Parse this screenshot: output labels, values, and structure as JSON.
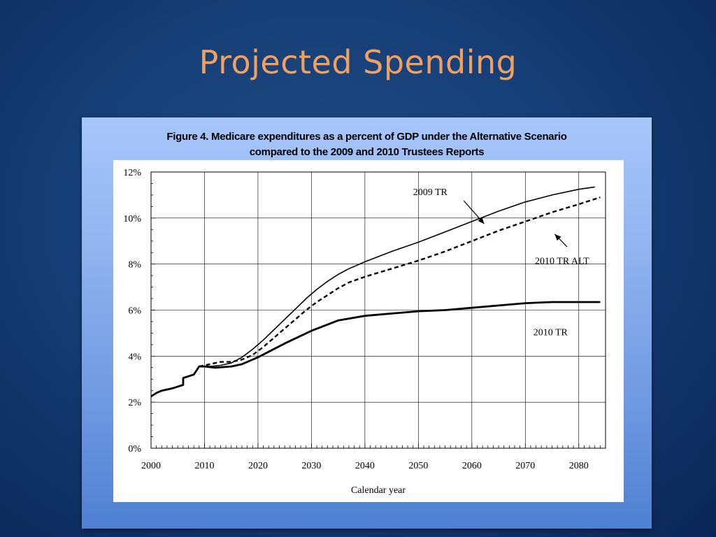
{
  "slide": {
    "title": "Projected Spending"
  },
  "chart_data": {
    "type": "line",
    "title_line1": "Figure 4.  Medicare expenditures as a percent of GDP under the Alternative Scenario",
    "title_line2": "compared to the 2009 and 2010 Trustees Reports",
    "xlabel": "Calendar year",
    "ylabel": "",
    "xlim": [
      2000,
      2085
    ],
    "ylim": [
      0,
      12
    ],
    "x_ticks": [
      2000,
      2010,
      2020,
      2030,
      2040,
      2050,
      2060,
      2070,
      2080
    ],
    "y_ticks": [
      0,
      2,
      4,
      6,
      8,
      10,
      12
    ],
    "y_tick_suffix": "%",
    "grid": true,
    "series": [
      {
        "name": "2009 TR",
        "style": "thin-solid",
        "x": [
          2009,
          2011,
          2013,
          2015,
          2017,
          2019,
          2021,
          2023,
          2025,
          2027,
          2029,
          2031,
          2033,
          2035,
          2037,
          2040,
          2045,
          2050,
          2055,
          2060,
          2065,
          2070,
          2075,
          2080,
          2083
        ],
        "y": [
          3.55,
          3.55,
          3.6,
          3.7,
          3.95,
          4.3,
          4.7,
          5.15,
          5.6,
          6.05,
          6.5,
          6.9,
          7.25,
          7.55,
          7.8,
          8.1,
          8.55,
          8.95,
          9.4,
          9.85,
          10.3,
          10.7,
          11.0,
          11.25,
          11.35
        ]
      },
      {
        "name": "2010 TR ALT",
        "style": "dashed",
        "x": [
          2009,
          2011,
          2013,
          2015,
          2017,
          2019,
          2021,
          2023,
          2025,
          2027,
          2029,
          2031,
          2033,
          2035,
          2037,
          2040,
          2045,
          2050,
          2055,
          2060,
          2065,
          2070,
          2075,
          2080,
          2084
        ],
        "y": [
          3.55,
          3.65,
          3.75,
          3.75,
          3.85,
          4.05,
          4.4,
          4.8,
          5.2,
          5.6,
          6.0,
          6.35,
          6.65,
          6.95,
          7.2,
          7.45,
          7.8,
          8.15,
          8.55,
          9.0,
          9.45,
          9.85,
          10.25,
          10.6,
          10.9
        ]
      },
      {
        "name": "2010 TR",
        "style": "thick-solid",
        "x": [
          2000,
          2001,
          2002,
          2004,
          2006,
          2006.01,
          2008,
          2009,
          2010,
          2012,
          2015,
          2017,
          2020,
          2025,
          2030,
          2035,
          2040,
          2045,
          2050,
          2055,
          2060,
          2065,
          2070,
          2075,
          2080,
          2084
        ],
        "y": [
          2.25,
          2.4,
          2.5,
          2.6,
          2.75,
          3.05,
          3.2,
          3.55,
          3.55,
          3.5,
          3.55,
          3.65,
          3.95,
          4.55,
          5.1,
          5.55,
          5.75,
          5.85,
          5.95,
          6.0,
          6.1,
          6.2,
          6.3,
          6.35,
          6.35,
          6.35
        ]
      }
    ],
    "annotations": [
      {
        "text": "2009 TR",
        "series": "2009 TR"
      },
      {
        "text": "2010 TR ALT",
        "series": "2010 TR ALT"
      },
      {
        "text": "2010 TR",
        "series": "2010 TR"
      }
    ]
  }
}
